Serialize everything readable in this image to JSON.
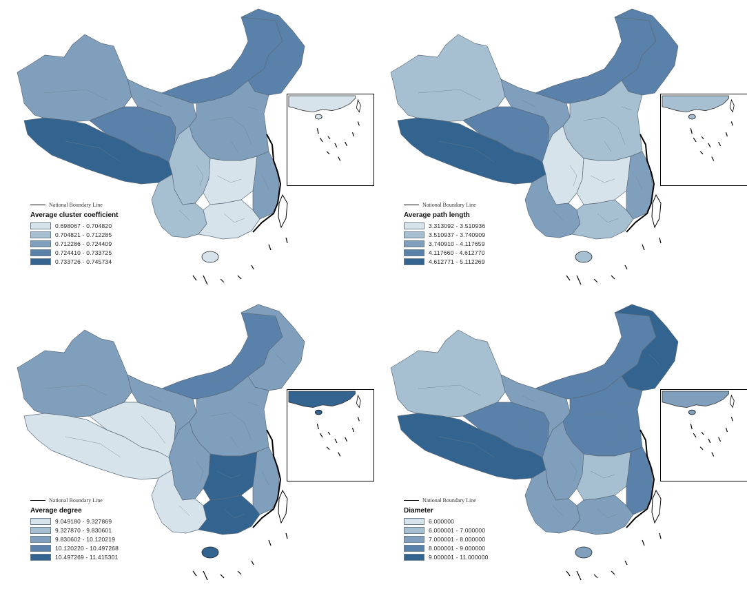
{
  "boundary_label": "National Boundary Line",
  "colors": [
    "#d6e3eb",
    "#a6bfd1",
    "#7f9fbd",
    "#5a81aa",
    "#33638f"
  ],
  "maps": [
    {
      "legend_title": "Average cluster coefficient",
      "classes": [
        "0.698067 - 0.704820",
        "0.704821 - 0.712285",
        "0.712286 - 0.724409",
        "0.724410 - 0.733725",
        "0.733726 - 0.745734"
      ],
      "region_classes": {
        "xinjiang": 2,
        "tibet": 4,
        "qinghai": 3,
        "gansu": 2,
        "innermongolia": 3,
        "northeast": 3,
        "northchina": 2,
        "sichuan": 1,
        "yunnan": 1,
        "central": 0,
        "southeast": 2,
        "south": 0
      }
    },
    {
      "legend_title": "Average path length",
      "classes": [
        "3.313092 - 3.510936",
        "3.510937 - 3.740909",
        "3.740910 - 4.117659",
        "4.117660 - 4.612770",
        "4.612771 - 5.112269"
      ],
      "region_classes": {
        "xinjiang": 1,
        "tibet": 4,
        "qinghai": 3,
        "gansu": 2,
        "innermongolia": 3,
        "northeast": 3,
        "northchina": 1,
        "sichuan": 0,
        "yunnan": 2,
        "central": 0,
        "southeast": 2,
        "south": 1
      }
    },
    {
      "legend_title": "Average degree",
      "classes": [
        "9.049180 - 9.327869",
        "9.327870 - 9.830601",
        "9.830602 - 10.120219",
        "10.120220 - 10.497268",
        "10.497269 - 11.415301"
      ],
      "region_classes": {
        "xinjiang": 2,
        "tibet": 0,
        "qinghai": 0,
        "gansu": 2,
        "innermongolia": 3,
        "northeast": 2,
        "northchina": 2,
        "sichuan": 2,
        "yunnan": 0,
        "central": 4,
        "southeast": 2,
        "south": 4
      }
    },
    {
      "legend_title": "Diameter",
      "classes": [
        "6.000000",
        "6.000001 - 7.000000",
        "7.000001 - 8.000000",
        "8.000001 - 9.000000",
        "9.000001 - 11.000000"
      ],
      "region_classes": {
        "xinjiang": 1,
        "tibet": 4,
        "qinghai": 3,
        "gansu": 2,
        "innermongolia": 3,
        "northeast": 4,
        "northchina": 3,
        "sichuan": 2,
        "yunnan": 2,
        "central": 1,
        "southeast": 3,
        "south": 2
      }
    }
  ]
}
